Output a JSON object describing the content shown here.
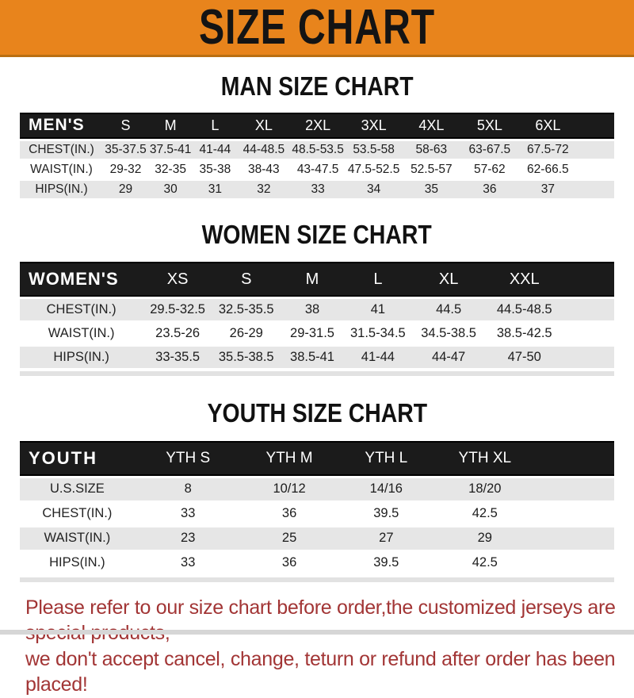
{
  "banner": {
    "title": "SIZE CHART"
  },
  "sections": [
    {
      "id": "men",
      "heading": "MAN SIZE CHART",
      "label": "MEN'S",
      "columns": [
        "S",
        "M",
        "L",
        "XL",
        "2XL",
        "3XL",
        "4XL",
        "5XL",
        "6XL"
      ],
      "rows": [
        {
          "label": "CHEST(IN.)",
          "values": [
            "35-37.5",
            "37.5-41",
            "41-44",
            "44-48.5",
            "48.5-53.5",
            "53.5-58",
            "58-63",
            "63-67.5",
            "67.5-72"
          ]
        },
        {
          "label": "WAIST(IN.)",
          "values": [
            "29-32",
            "32-35",
            "35-38",
            "38-43",
            "43-47.5",
            "47.5-52.5",
            "52.5-57",
            "57-62",
            "62-66.5"
          ]
        },
        {
          "label": "HIPS(IN.)",
          "values": [
            "29",
            "30",
            "31",
            "32",
            "33",
            "34",
            "35",
            "36",
            "37"
          ]
        }
      ]
    },
    {
      "id": "women",
      "heading": "WOMEN SIZE CHART",
      "label": "WOMEN'S",
      "columns": [
        "XS",
        "S",
        "M",
        "L",
        "XL",
        "XXL"
      ],
      "rows": [
        {
          "label": "CHEST(IN.)",
          "values": [
            "29.5-32.5",
            "32.5-35.5",
            "38",
            "41",
            "44.5",
            "44.5-48.5"
          ]
        },
        {
          "label": "WAIST(IN.)",
          "values": [
            "23.5-26",
            "26-29",
            "29-31.5",
            "31.5-34.5",
            "34.5-38.5",
            "38.5-42.5"
          ]
        },
        {
          "label": "HIPS(IN.)",
          "values": [
            "33-35.5",
            "35.5-38.5",
            "38.5-41",
            "41-44",
            "44-47",
            "47-50"
          ]
        }
      ]
    },
    {
      "id": "youth",
      "heading": "YOUTH SIZE CHART",
      "label": "YOUTH",
      "columns": [
        "YTH S",
        "YTH M",
        "YTH L",
        "YTH XL"
      ],
      "rows": [
        {
          "label": "U.S.SIZE",
          "values": [
            "8",
            "10/12",
            "14/16",
            "18/20"
          ]
        },
        {
          "label": "CHEST(IN.)",
          "values": [
            "33",
            "36",
            "39.5",
            "42.5"
          ]
        },
        {
          "label": "WAIST(IN.)",
          "values": [
            "23",
            "25",
            "27",
            "29"
          ]
        },
        {
          "label": "HIPS(IN.)",
          "values": [
            "33",
            "36",
            "39.5",
            "42.5"
          ]
        }
      ]
    }
  ],
  "footer": {
    "line1": "Please refer to our size chart before order,the customized jerseys are special products,",
    "line2": "we don't accept cancel, change, teturn or refund after order has been placed!"
  },
  "colors": {
    "banner_bg": "#E8841C",
    "banner_edge": "#BA6F12",
    "header_bar": "#1B1B1B",
    "row_alt_gray": "#E6E6E6",
    "footer_text": "#A23535"
  }
}
